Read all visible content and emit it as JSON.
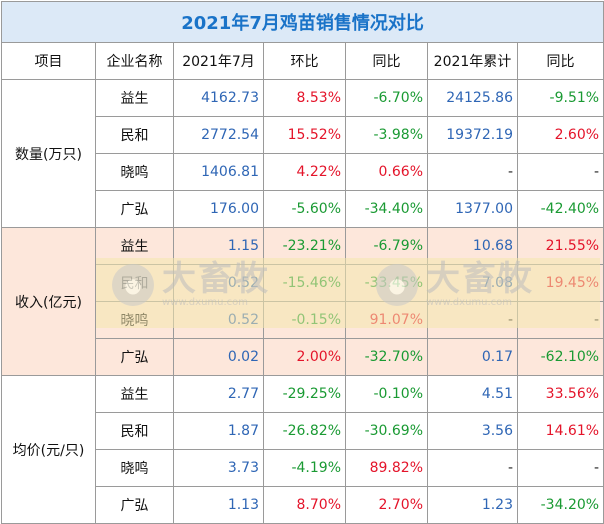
{
  "title": "2021年7月鸡苗销售情况对比",
  "headers": [
    "项目",
    "企业名称",
    "2021年7月",
    "环比",
    "同比",
    "2021年累计",
    "同比"
  ],
  "colors": {
    "red": "#e4142a",
    "green": "#1a9a33",
    "blue": "#2f66b5",
    "band": "#fde7db",
    "title": "#1a73c8"
  },
  "groups": [
    {
      "label": "数量(万只)",
      "rows": [
        {
          "company": "益生",
          "month": "4162.73",
          "mom": "8.53%",
          "yoy": "-6.70%",
          "cumulative": "24125.86",
          "cum_yoy": "-9.51%"
        },
        {
          "company": "民和",
          "month": "2772.54",
          "mom": "15.52%",
          "yoy": "-3.98%",
          "cumulative": "19372.19",
          "cum_yoy": "2.60%"
        },
        {
          "company": "晓鸣",
          "month": "1406.81",
          "mom": "4.22%",
          "yoy": "0.66%",
          "cumulative": "-",
          "cum_yoy": "-"
        },
        {
          "company": "广弘",
          "month": "176.00",
          "mom": "-5.60%",
          "yoy": "-34.40%",
          "cumulative": "1377.00",
          "cum_yoy": "-42.40%"
        }
      ]
    },
    {
      "label": "收入(亿元)",
      "rows": [
        {
          "company": "益生",
          "month": "1.15",
          "mom": "-23.21%",
          "yoy": "-6.79%",
          "cumulative": "10.68",
          "cum_yoy": "21.55%"
        },
        {
          "company": "民和",
          "month": "0.52",
          "mom": "-15.46%",
          "yoy": "-33.45%",
          "cumulative": "7.08",
          "cum_yoy": "19.45%"
        },
        {
          "company": "晓鸣",
          "month": "0.52",
          "mom": "-0.15%",
          "yoy": "91.07%",
          "cumulative": "-",
          "cum_yoy": "-"
        },
        {
          "company": "广弘",
          "month": "0.02",
          "mom": "2.00%",
          "yoy": "-32.70%",
          "cumulative": "0.17",
          "cum_yoy": "-62.10%"
        }
      ]
    },
    {
      "label": "均价(元/只)",
      "rows": [
        {
          "company": "益生",
          "month": "2.77",
          "mom": "-29.25%",
          "yoy": "-0.10%",
          "cumulative": "4.51",
          "cum_yoy": "33.56%"
        },
        {
          "company": "民和",
          "month": "1.87",
          "mom": "-26.82%",
          "yoy": "-30.69%",
          "cumulative": "3.56",
          "cum_yoy": "14.61%"
        },
        {
          "company": "晓鸣",
          "month": "3.73",
          "mom": "-4.19%",
          "yoy": "89.82%",
          "cumulative": "-",
          "cum_yoy": "-"
        },
        {
          "company": "广弘",
          "month": "1.13",
          "mom": "8.70%",
          "yoy": "2.70%",
          "cumulative": "1.23",
          "cum_yoy": "-34.20%"
        }
      ]
    }
  ],
  "watermark": {
    "text": "大畜牧",
    "url": "www.dxumu.com"
  }
}
